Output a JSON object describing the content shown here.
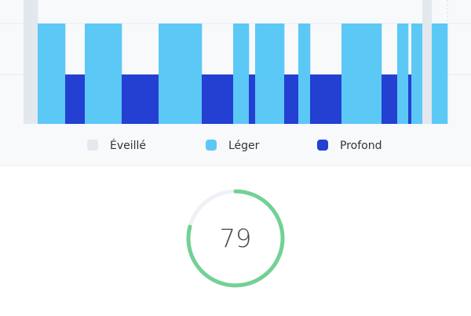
{
  "hypnogram": {
    "stages": [
      {
        "name": "Éveillé",
        "color": "#e3e8ef"
      },
      {
        "name": "Léger",
        "color": "#5cc8f6"
      },
      {
        "name": "Profond",
        "color": "#2440d2"
      }
    ],
    "segments": [
      {
        "level": 0,
        "minutes": 18
      },
      {
        "level": 1,
        "minutes": 35
      },
      {
        "level": 2,
        "minutes": 25
      },
      {
        "level": 1,
        "minutes": 47
      },
      {
        "level": 2,
        "minutes": 47
      },
      {
        "level": 1,
        "minutes": 55
      },
      {
        "level": 2,
        "minutes": 40
      },
      {
        "level": 1,
        "minutes": 20
      },
      {
        "level": 2,
        "minutes": 8
      },
      {
        "level": 1,
        "minutes": 37
      },
      {
        "level": 2,
        "minutes": 18
      },
      {
        "level": 1,
        "minutes": 15
      },
      {
        "level": 2,
        "minutes": 40
      },
      {
        "level": 1,
        "minutes": 51
      },
      {
        "level": 2,
        "minutes": 20
      },
      {
        "level": 1,
        "minutes": 14
      },
      {
        "level": 2,
        "minutes": 4
      },
      {
        "level": 1,
        "minutes": 14
      },
      {
        "level": 0,
        "minutes": 12
      },
      {
        "level": 1,
        "minutes": 20
      }
    ]
  },
  "score": {
    "value": 79,
    "max": 100,
    "color": "#72d194"
  }
}
